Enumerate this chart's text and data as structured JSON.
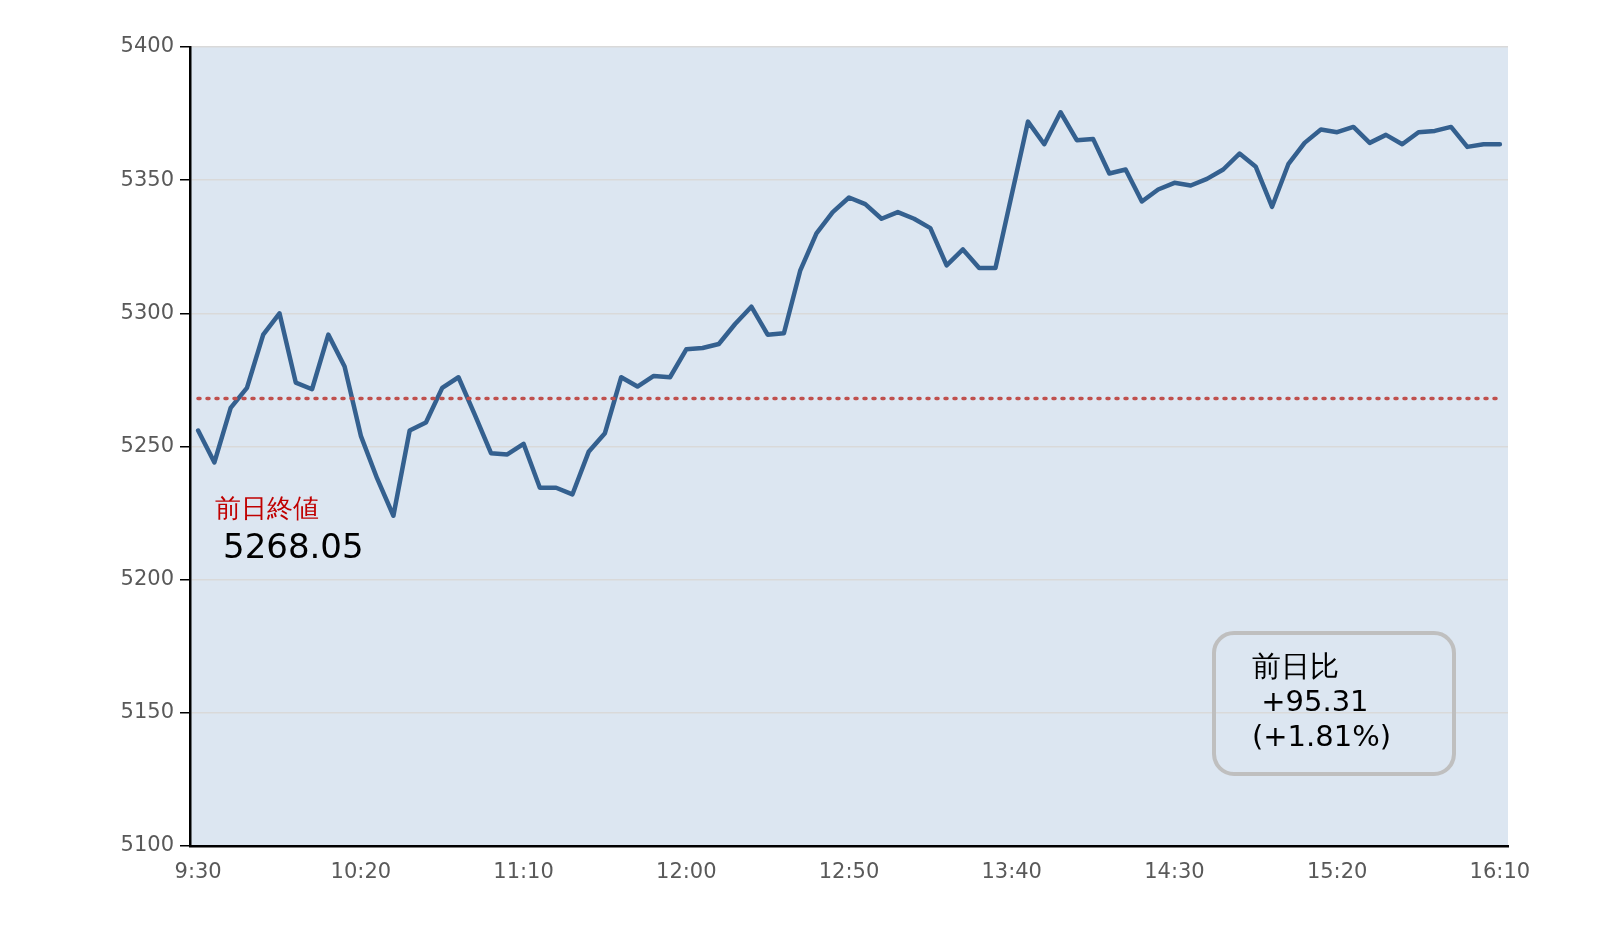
{
  "chart_data": {
    "type": "line",
    "categories": [
      "9:30",
      null,
      null,
      null,
      null,
      null,
      null,
      null,
      null,
      null,
      "10:20",
      null,
      null,
      null,
      null,
      null,
      null,
      null,
      null,
      null,
      "11:10",
      null,
      null,
      null,
      null,
      null,
      null,
      null,
      null,
      null,
      "12:00",
      null,
      null,
      null,
      null,
      null,
      null,
      null,
      null,
      null,
      "12:50",
      null,
      null,
      null,
      null,
      null,
      null,
      null,
      null,
      null,
      "13:40",
      null,
      null,
      null,
      null,
      null,
      null,
      null,
      null,
      null,
      "14:30",
      null,
      null,
      null,
      null,
      null,
      null,
      null,
      null,
      null,
      "15:20",
      null,
      null,
      null,
      null,
      null,
      null,
      null,
      null,
      null,
      "16:10"
    ],
    "series": [
      {
        "color": "#34608f",
        "values": [
          5256,
          5244,
          5264.5,
          5272,
          5292,
          5300,
          5274,
          5271.5,
          5292,
          5280,
          5254,
          5238,
          5224,
          5256,
          5259,
          5272,
          5276,
          5262,
          5247.5,
          5247,
          5251,
          5234.5,
          5234.5,
          5232,
          5248,
          5255,
          5276,
          5272.5,
          5276.5,
          5276,
          5286.5,
          5287,
          5288.5,
          5296,
          5302.5,
          5292,
          5292.5,
          5316,
          5330,
          5338,
          5343.5,
          5341,
          5335.5,
          5338,
          5335.5,
          5332,
          5318,
          5324,
          5317,
          5317,
          5344.5,
          5372,
          5363.5,
          5375.5,
          5365,
          5365.5,
          5352.5,
          5354,
          5342,
          5346.5,
          5349,
          5348,
          5350.5,
          5354,
          5360,
          5355,
          5340,
          5356,
          5364,
          5369,
          5368,
          5370,
          5364,
          5367,
          5363.5,
          5368,
          5368.5,
          5370,
          5362.5,
          5363.5,
          5363.5
        ]
      }
    ],
    "ylim": [
      5100,
      5400
    ],
    "yticks": [
      5100,
      5150,
      5200,
      5250,
      5300,
      5350,
      5400
    ],
    "grid": "y",
    "legend": false,
    "marker": "none",
    "line_style": "solid",
    "ref_lines": [
      {
        "axis": "y",
        "value": 5268.05,
        "color": "#c0504d",
        "line_style": "dotted"
      }
    ],
    "annotations": [
      "前日終値",
      "5268.05",
      "前日比\n +95.31\n(+1.81%)"
    ]
  }
}
